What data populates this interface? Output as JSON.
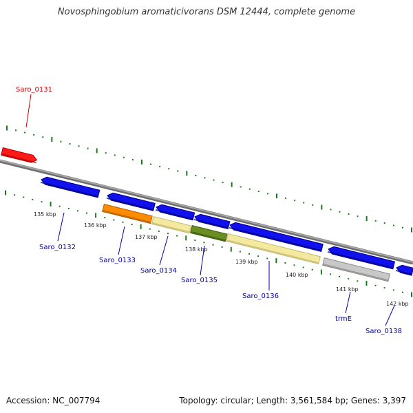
{
  "title": "Novosphingobium aromaticivorans DSM 12444, complete genome",
  "footer": {
    "accession": "Accession: NC_007794",
    "summary": "Topology: circular; Length: 3,561,584 bp; Genes: 3,397"
  },
  "colors": {
    "highlight": "#ff0000",
    "gene": "#0000ee",
    "backbone": "#888888",
    "tick": "#1a7a1a",
    "orange": "#ff8c00",
    "pale": "#f3eaa0",
    "olive": "#6b8e23",
    "gray": "#bbbbbb",
    "label_gene": "#0000aa",
    "label_highlight": "#cc0000"
  },
  "ticks": [
    "135 kbp",
    "136 kbp",
    "137 kbp",
    "138 kbp",
    "139 kbp",
    "140 kbp",
    "141 kbp",
    "142 kbp"
  ],
  "genes": [
    "Saro_0131",
    "Saro_0132",
    "Saro_0133",
    "Saro_0134",
    "Saro_0135",
    "Saro_0136",
    "trmE",
    "Saro_0138"
  ]
}
